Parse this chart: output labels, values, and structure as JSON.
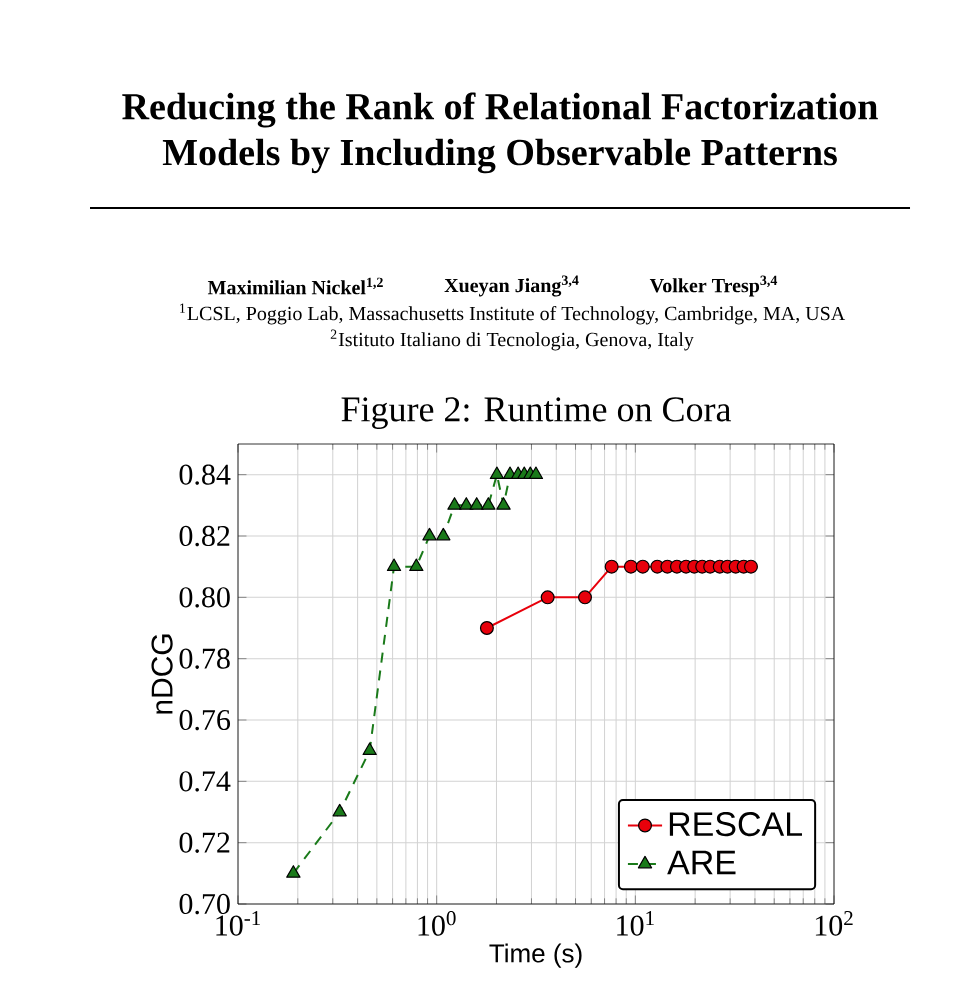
{
  "chart_data": {
    "type": "line",
    "title": "Figure 2: Runtime on Cora",
    "xlabel": "Time (s)",
    "ylabel": "nDCG",
    "annotations": [
      "Reducing the Rank of Relational Factorization",
      "Models by Including Observable Patterns",
      "Maximilian Nickel$^{1,2}$",
      "Xueyan Jiang$^{3,4}$",
      "Volker Tresp$^{3,4}$",
      "$^{1}$LCSL, Poggio Lab, Massachusetts Institute of Technology, Cambridge, MA, USA",
      "$^{2}$Istituto Italiano di Tecnologia, Genova, Italy"
    ],
    "log": "x",
    "grid": true,
    "legend": "bottom right",
    "xlim": [
      0.1,
      100
    ],
    "ylim": [
      0.7,
      0.85
    ],
    "xticks": [
      {
        "value": 0.1,
        "label": "10$^{-1}$"
      },
      {
        "value": 1,
        "label": "10$^{0}$"
      },
      {
        "value": 10,
        "label": "10$^{1}$"
      },
      {
        "value": 100,
        "label": "10$^{2}$"
      }
    ],
    "yticks": [
      {
        "value": 0.7,
        "label": "0.70"
      },
      {
        "value": 0.72,
        "label": "0.72"
      },
      {
        "value": 0.74,
        "label": "0.74"
      },
      {
        "value": 0.76,
        "label": "0.76"
      },
      {
        "value": 0.78,
        "label": "0.78"
      },
      {
        "value": 0.8,
        "label": "0.80"
      },
      {
        "value": 0.82,
        "label": "0.82"
      },
      {
        "value": 0.84,
        "label": "0.84"
      }
    ],
    "series": [
      {
        "name": "RESCAL",
        "color": "#e8000b",
        "marker": "circle",
        "line_style": "solid",
        "x": [
          1.79,
          3.62,
          5.58,
          7.6,
          9.5,
          10.9,
          12.9,
          14.5,
          16.2,
          18.0,
          19.8,
          21.7,
          23.8,
          26.6,
          29.1,
          32.0,
          35.1,
          38.2
        ],
        "values": [
          0.79,
          0.8,
          0.8,
          0.81,
          0.81,
          0.81,
          0.81,
          0.81,
          0.81,
          0.81,
          0.81,
          0.81,
          0.81,
          0.81,
          0.81,
          0.81,
          0.81,
          0.81
        ]
      },
      {
        "name": "ARE",
        "color": "#1a7a1a",
        "marker": "triangle",
        "line_style": "dashed",
        "x": [
          0.19,
          0.325,
          0.46,
          0.61,
          0.79,
          0.92,
          1.08,
          1.23,
          1.41,
          1.59,
          1.82,
          2.01,
          2.17,
          2.34,
          2.57,
          2.76,
          2.96,
          3.16
        ],
        "values": [
          0.71,
          0.73,
          0.75,
          0.81,
          0.81,
          0.82,
          0.82,
          0.83,
          0.83,
          0.83,
          0.83,
          0.84,
          0.83,
          0.84,
          0.84,
          0.84,
          0.84,
          0.84
        ]
      }
    ]
  }
}
